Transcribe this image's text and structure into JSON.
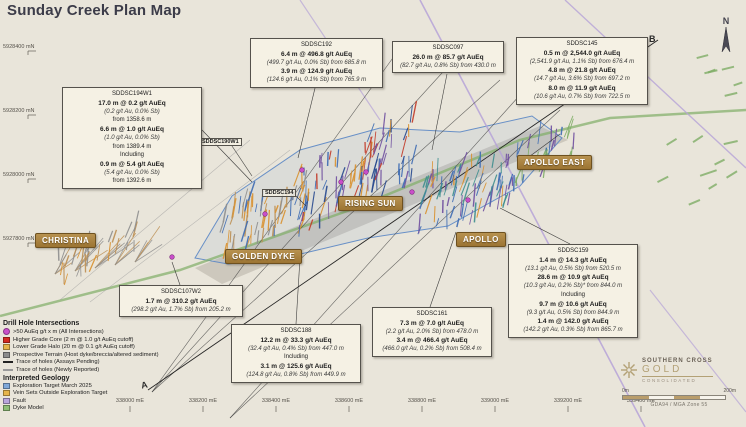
{
  "title": "Sunday Creek Plan Map",
  "compass": {
    "label": "N"
  },
  "section_markers": {
    "top": "B",
    "bottom": "A"
  },
  "region_labels": [
    "CHRISTINA",
    "GOLDEN DYKE",
    "RISING SUN",
    "APOLLO",
    "APOLLO EAST"
  ],
  "map_labels": [
    "SDDSC190W1",
    "SDDSC194"
  ],
  "callouts": [
    {
      "id": "SDDSC194W1",
      "title": "SDDSC194W1",
      "lines": [
        {
          "style": "b",
          "text": "17.0 m @ 0.2 g/t AuEq"
        },
        {
          "style": "i",
          "text": "(0.2 g/t Au, 0.0% Sb)"
        },
        {
          "style": "p",
          "text": "from 1358.6 m"
        },
        {
          "style": "b",
          "text": "6.6 m @ 1.0 g/t AuEq"
        },
        {
          "style": "i",
          "text": "(1.0 g/t Au, 0.0% Sb)"
        },
        {
          "style": "p",
          "text": "from 1389.4 m"
        },
        {
          "style": "p",
          "text": "Including"
        },
        {
          "style": "b",
          "text": "0.9 m @ 5.4 g/t AuEq"
        },
        {
          "style": "i",
          "text": "(5.4 g/t Au, 0.0% Sb)"
        },
        {
          "style": "p",
          "text": "from 1392.6 m"
        }
      ]
    },
    {
      "id": "SDDSC192",
      "title": "SDDSC192",
      "lines": [
        {
          "style": "b",
          "text": "6.4 m @ 496.8 g/t AuEq"
        },
        {
          "style": "i",
          "text": "(499.7 g/t Au, 0.0% Sb) from 685.8 m"
        },
        {
          "style": "b",
          "text": "3.9 m @ 124.9 g/t AuEq"
        },
        {
          "style": "i",
          "text": "(124.6 g/t Au, 0.1% Sb) from 765.9 m"
        }
      ]
    },
    {
      "id": "SDDSC097",
      "title": "SDDSC097",
      "lines": [
        {
          "style": "b",
          "text": "26.0 m @ 85.7 g/t AuEq"
        },
        {
          "style": "i",
          "text": "(82.7 g/t Au, 0.8% Sb) from 430.0 m"
        }
      ]
    },
    {
      "id": "SDDSC145",
      "title": "SDDSC145",
      "lines": [
        {
          "style": "b",
          "text": "0.5 m @ 2,544.0 g/t AuEq"
        },
        {
          "style": "i",
          "text": "(2,541.9 g/t Au, 1.1% Sb) from 676.4 m"
        },
        {
          "style": "b",
          "text": "4.8 m @ 21.8 g/t AuEq"
        },
        {
          "style": "i",
          "text": "(14.7 g/t Au, 3.6% Sb) from 697.2 m"
        },
        {
          "style": "b",
          "text": "8.0 m @ 11.9 g/t AuEq"
        },
        {
          "style": "i",
          "text": "(10.6 g/t Au, 0.7% Sb) from 722.5 m"
        }
      ]
    },
    {
      "id": "SDDSC159",
      "title": "SDDSC159",
      "lines": [
        {
          "style": "b",
          "text": "1.4 m @ 14.3 g/t AuEq"
        },
        {
          "style": "i",
          "text": "(13.1 g/t Au, 0.5% Sb) from 520.5 m"
        },
        {
          "style": "b",
          "text": "28.6 m @ 10.9 g/t AuEq"
        },
        {
          "style": "i",
          "text": "(10.3 g/t Au, 0.2% Sb)* from 844.0 m"
        },
        {
          "style": "p",
          "text": "Including"
        },
        {
          "style": "b",
          "text": "9.7 m @ 10.6 g/t AuEq"
        },
        {
          "style": "i",
          "text": "(9.3 g/t Au, 0.5% Sb) from 844.9 m"
        },
        {
          "style": "b",
          "text": "1.4 m @ 142.0 g/t AuEq"
        },
        {
          "style": "i",
          "text": "(142.2 g/t Au, 0.3% Sb) from 865.7 m"
        }
      ]
    },
    {
      "id": "SDDSC161",
      "title": "SDDSC161",
      "lines": [
        {
          "style": "b",
          "text": "7.3 m @ 7.0 g/t AuEq"
        },
        {
          "style": "i",
          "text": "(2.2 g/t Au, 2.0% Sb) from 478.0 m"
        },
        {
          "style": "b",
          "text": "3.4 m @ 466.4 g/t AuEq"
        },
        {
          "style": "i",
          "text": "(466.0 g/t Au, 0.2% Sb) from 508.4 m"
        }
      ]
    },
    {
      "id": "SDDSC188",
      "title": "SDDSC188",
      "lines": [
        {
          "style": "b",
          "text": "12.2 m @ 33.3 g/t AuEq"
        },
        {
          "style": "i",
          "text": "(32.4 g/t Au, 0.4% Sb) from 447.0 m"
        },
        {
          "style": "p",
          "text": "Including"
        },
        {
          "style": "b",
          "text": "3.1 m @ 125.6 g/t AuEq"
        },
        {
          "style": "i",
          "text": "(124.8 g/t Au, 0.8% Sb) from 449.9 m"
        }
      ]
    },
    {
      "id": "SDDSC107W2",
      "title": "SDDSC107W2",
      "lines": [
        {
          "style": "b",
          "text": "1.7 m @ 310.2 g/t AuEq"
        },
        {
          "style": "i",
          "text": "(298.2 g/t Au, 1.7% Sb) from 205.2 m"
        }
      ]
    }
  ],
  "legend": {
    "sections": [
      {
        "title": "Drill Hole Intersections",
        "items": [
          {
            "swatch": {
              "type": "circle",
              "color": "#c94fc9"
            },
            "label": ">50 AuEq g/t x m (All Intersections)"
          },
          {
            "swatch": {
              "type": "square",
              "color": "#d42a20"
            },
            "label": "Higher Grade Core (2 m @ 1.0 g/t AuEq cutoff)"
          },
          {
            "swatch": {
              "type": "square",
              "color": "#e6b54a"
            },
            "label": "Lower Grade Halo (20 m @ 0.1 g/t AuEq cutoff)"
          },
          {
            "swatch": {
              "type": "square",
              "color": "#8c8c8c"
            },
            "label": "Prospective Terrain (Host dyke/breccia/altered sediment)"
          },
          {
            "swatch": {
              "type": "line",
              "color": "#222222"
            },
            "label": "Trace of holes (Assays Pending)"
          },
          {
            "swatch": {
              "type": "line",
              "color": "#9a9a9a"
            },
            "label": "Trace of holes (Newly Reported)"
          }
        ]
      },
      {
        "title": "Interpreted Geology",
        "items": [
          {
            "swatch": {
              "type": "square",
              "color": "#7fa8d9"
            },
            "label": "Exploration Target March 2025"
          },
          {
            "swatch": {
              "type": "square",
              "color": "#e6b54a"
            },
            "label": "Vein Sets Outside Exploration Target"
          },
          {
            "swatch": {
              "type": "square",
              "color": "#b9a6dc"
            },
            "label": "Fault"
          },
          {
            "swatch": {
              "type": "square",
              "color": "#8fbf77"
            },
            "label": "Dyke Model"
          }
        ]
      }
    ]
  },
  "axes": {
    "x_ticks": [
      "338000 mE",
      "338200 mE",
      "338400 mE",
      "338600 mE",
      "338800 mE",
      "339000 mE",
      "339200 mE",
      "339400 mE"
    ],
    "y_ticks": [
      "5928400 mN",
      "5928200 mN",
      "5928000 mN",
      "5927800 mN"
    ]
  },
  "logo": {
    "line1": "SOUTHERN CROSS",
    "line2": "GOLD",
    "line3": "CONSOLIDATED"
  },
  "scalebar": {
    "start": "0m",
    "end": "200m",
    "datum": "GDA94 / MGA Zone 55"
  },
  "colors": {
    "background": "#e9e5da",
    "title": "#3c3c49",
    "callout_bg": "#f5f1e4",
    "region_label": "#a9793e",
    "target_outline": "#5b87c5",
    "fault": "#b7a4d8",
    "dyke": "#7fae66",
    "high_grade": "#d42a20",
    "halo": "#e6b54a",
    "marker": "#c94fc9"
  }
}
